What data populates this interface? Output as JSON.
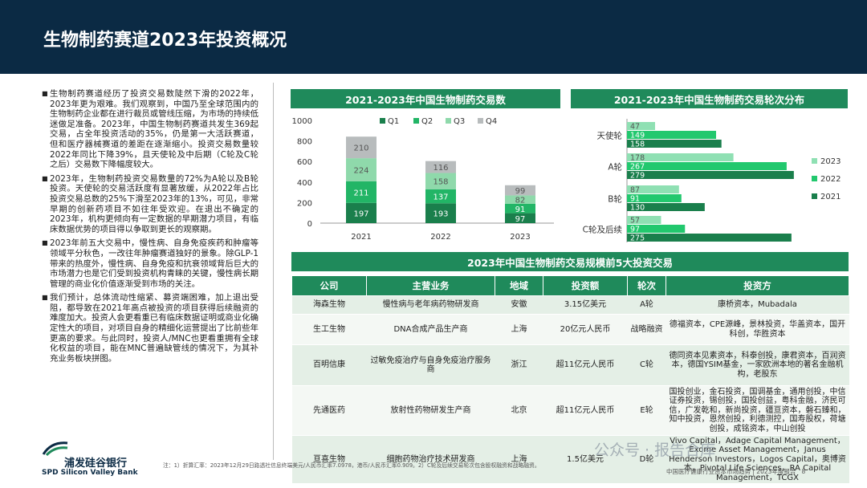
{
  "page": {
    "title": "生物制药赛道2023年投资概况",
    "bullets": [
      "生物制药赛道经历了投资交易数陡然下滑的2022年，2023年更为艰难。我们观察到，中国乃至全球范围内的生物制药企业都在进行裁员或管线压缩，为市场的持续低迷做足准备。2023年，中国生物制药赛道共发生369起交易，占全年投资活动的35%，仍是第一大活跃赛道，但和医疗器械赛道的差距在逐渐缩小。投资交易数量较2022年同比下降39%，且天使轮及中后期（C轮及C轮之后）交易数下降幅度较大。",
      "2023年，生物制药投资交易数量的72%为A轮以及B轮投资。天使轮的交易活跃度有显著放缓，从2022年占比投资交易总数的25%下滑至2023年的13%，可见，非常早期的创新药项目不如往年受欢迎。在退出不确定的2023年，机构更倾向有一定数据的早期潜力项目，有临床数据优势的项目得以争取到更长的观察期。",
      "2023年前五大交易中，慢性病、自身免疫疾药和肿瘤等领域平分秋色，一改往年肿瘤赛道独好的景象。除GLP-1带来的热度外，慢性病、自身免疫和抗衰领域背后巨大的市场潜力也是它们受到投资机构青睐的关键，慢性病长期管理的商业化价值逐渐受到市场的关注。",
      "我们预计，总体流动性缩紧、募资端困难，加上退出受阻，都导致在2021年高点被投资的项目获得后续融资的难度加大。投资人会更看重已有临床数据证明或商业化确定性大的项目，对项目自身的精细化运营提出了比前些年更高的要求。与此同时，投资人/MNC也更看重拥有全球化权益的项目，能在MNC普遍缺管线的情况下，为其补充业务板块拼图。"
    ],
    "logo_cn": "浦发硅谷银行",
    "logo_en": "SPD Silicon Valley Bank",
    "footnote": "注：1）折算汇率：2023年12月29日路透社信息终端美元/人民币汇率7.0978，港币/人民币汇率0.909。2）C轮及后续交易轮次包含股权融资和战略融资。",
    "footer": "中国医疗健康行业资本市场趋势 | 2023年度报告",
    "page_number": "8",
    "watermark": "公众号 · 报告合库",
    "colors": {
      "header": "#0b2a44",
      "green": "#1f8a5b",
      "q1": "#1a7f4c",
      "q2": "#22b566",
      "q3": "#8fd9ab",
      "q4": "#b8bcbd",
      "y2021": "#1a7f4c",
      "y2022": "#22c86e",
      "y2023": "#8fe0b3"
    }
  },
  "chart_data": [
    {
      "type": "bar",
      "stacked": true,
      "title": "2021-2023年中国生物制药交易数",
      "categories": [
        "2021",
        "2022",
        "2023"
      ],
      "series": [
        {
          "name": "Q1",
          "values": [
            197,
            193,
            97
          ]
        },
        {
          "name": "Q2",
          "values": [
            211,
            137,
            91
          ]
        },
        {
          "name": "Q3",
          "values": [
            224,
            158,
            82
          ]
        },
        {
          "name": "Q4",
          "values": [
            210,
            116,
            99
          ]
        }
      ],
      "ylim": [
        0,
        1000
      ],
      "yticks": [
        0,
        200,
        400,
        600,
        800,
        1000
      ],
      "legend": "top"
    },
    {
      "type": "bar",
      "orientation": "horizontal",
      "title": "2021-2023年中国生物制药交易轮次分布",
      "categories": [
        "天使轮",
        "A轮",
        "B轮",
        "C轮及后续"
      ],
      "series": [
        {
          "name": "2023",
          "values": [
            47,
            178,
            87,
            57
          ]
        },
        {
          "name": "2022",
          "values": [
            149,
            267,
            91,
            97
          ]
        },
        {
          "name": "2021",
          "values": [
            158,
            279,
            130,
            275
          ]
        }
      ],
      "legend": "right"
    },
    {
      "type": "table",
      "title": "2023年中国生物制药交易规模前5大投资交易",
      "columns": [
        "公司",
        "主营业务",
        "地域",
        "投资额",
        "轮次",
        "投资方"
      ],
      "rows": [
        [
          "海森生物",
          "慢性病与老年病药物研发商",
          "安徽",
          "3.15亿美元",
          "A轮",
          "康桥资本，Mubadala"
        ],
        [
          "生工生物",
          "DNA合成产品生产商",
          "上海",
          "20亿元人民币",
          "战略融资",
          "德福资本，CPE源峰，景林投资，华盖资本，国开科创，华胜资本"
        ],
        [
          "百明信康",
          "过敏免疫治疗与自身免疫治疗服务商",
          "浙江",
          "超11亿元人民币",
          "C轮",
          "德同资本见素资本，科泰创投，康君资本，百润资本，德国YSIM基金，一家欧洲本地的著名金融机构，老股东"
        ],
        [
          "先通医药",
          "放射性药物研发生产商",
          "北京",
          "超11亿元人民币",
          "E轮",
          "国投创业，金石投资，国调基金，通用创投，中信证券投资，锡创投，国投创益，粤科金融，济民可信，广发乾和，新尚投资，疆亘资本，磐石臻和，知中投资，恩然创投，利德测控，国寿股权，荷塘创投，成铭资本，中山创投"
        ],
        [
          "亘喜生物",
          "细胞药物治疗技术研发商",
          "上海",
          "1.5亿美元",
          "D轮",
          "Vivo Capital，Adage Capital Management，Exome Asset Management，Janus Henderson Investors，Logos Capital，奥博资本，Pivotal Life Sciences，RA Capital Management，TCGX"
        ]
      ]
    }
  ]
}
